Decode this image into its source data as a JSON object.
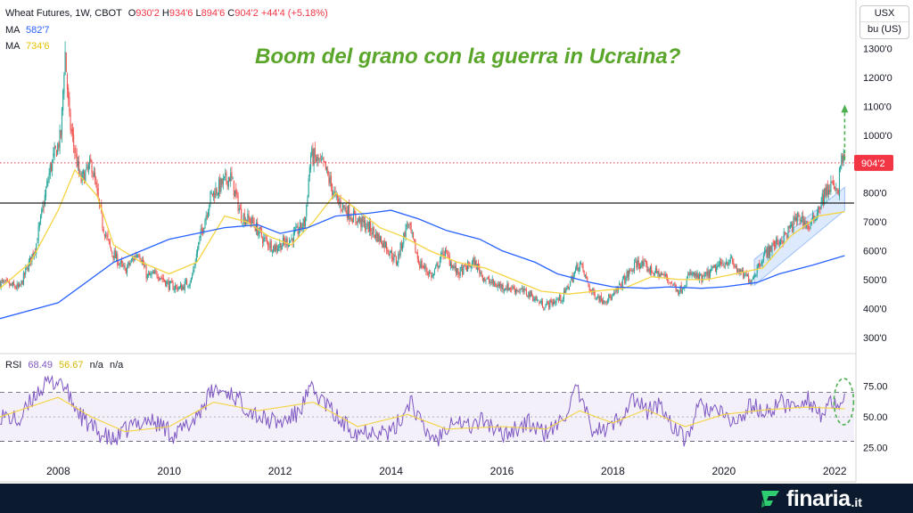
{
  "header": {
    "symbol": "Wheat Futures, 1W, CBOT",
    "open_label": "O",
    "open": "930'2",
    "high_label": "H",
    "high": "934'6",
    "low_label": "L",
    "low": "894'6",
    "close_label": "C",
    "close": "904'2",
    "change": "+44'4 (+5.18%)",
    "ma1_label": "MA",
    "ma1_value": "582'7",
    "ma2_label": "MA",
    "ma2_value": "734'6",
    "rsi_label": "RSI",
    "rsi_value": "68.49",
    "rsi_ma_value": "56.67",
    "na1": "n/a",
    "na2": "n/a"
  },
  "annotation_title": "Boom del grano con la guerra in Ucraina?",
  "units": {
    "currency": "USX",
    "unit": "bu (US)"
  },
  "price_label": "904'2",
  "brand": {
    "name": "finaria",
    "suffix": ".it"
  },
  "colors": {
    "up": "#26a69a",
    "down": "#ef5350",
    "ma_long": "#2962ff",
    "ma_short": "#f5d442",
    "rsi": "#7e57c2",
    "title": "#5aa62b",
    "marker": "#f23645",
    "footer": "#0b1a2e"
  },
  "chart_data": [
    {
      "type": "candlestick",
      "y_ticks": [
        "1300'0",
        "1200'0",
        "1100'0",
        "1000'0",
        "900'0",
        "800'0",
        "700'0",
        "600'0",
        "500'0",
        "400'0",
        "300'0"
      ],
      "y_tick_values": [
        1300,
        1200,
        1100,
        1000,
        900,
        800,
        700,
        600,
        500,
        400,
        300
      ],
      "ylim": [
        250,
        1345
      ],
      "x_ticks": [
        "2008",
        "2010",
        "2012",
        "2014",
        "2016",
        "2018",
        "2020",
        "2022"
      ],
      "x_tick_values": [
        2008,
        2010,
        2012,
        2014,
        2016,
        2018,
        2020,
        2022
      ],
      "xlim": [
        2006.95,
        2022.35
      ],
      "last_price": 904.25,
      "horizontal_level": 765,
      "price_path": [
        [
          2006.95,
          490
        ],
        [
          2007.3,
          470
        ],
        [
          2007.6,
          620
        ],
        [
          2007.85,
          880
        ],
        [
          2008.05,
          1000
        ],
        [
          2008.12,
          1300
        ],
        [
          2008.2,
          1050
        ],
        [
          2008.4,
          840
        ],
        [
          2008.6,
          900
        ],
        [
          2008.8,
          690
        ],
        [
          2008.95,
          600
        ],
        [
          2009.2,
          530
        ],
        [
          2009.45,
          600
        ],
        [
          2009.6,
          510
        ],
        [
          2009.8,
          520
        ],
        [
          2010.0,
          480
        ],
        [
          2010.2,
          470
        ],
        [
          2010.4,
          500
        ],
        [
          2010.55,
          640
        ],
        [
          2010.75,
          790
        ],
        [
          2011.1,
          860
        ],
        [
          2011.3,
          720
        ],
        [
          2011.5,
          700
        ],
        [
          2011.7,
          640
        ],
        [
          2011.9,
          610
        ],
        [
          2012.2,
          640
        ],
        [
          2012.45,
          700
        ],
        [
          2012.55,
          930
        ],
        [
          2012.8,
          890
        ],
        [
          2013.0,
          780
        ],
        [
          2013.3,
          720
        ],
        [
          2013.6,
          680
        ],
        [
          2013.9,
          620
        ],
        [
          2014.1,
          560
        ],
        [
          2014.3,
          700
        ],
        [
          2014.5,
          560
        ],
        [
          2014.75,
          510
        ],
        [
          2014.95,
          600
        ],
        [
          2015.2,
          520
        ],
        [
          2015.5,
          560
        ],
        [
          2015.7,
          500
        ],
        [
          2015.9,
          480
        ],
        [
          2016.2,
          470
        ],
        [
          2016.5,
          450
        ],
        [
          2016.75,
          410
        ],
        [
          2016.9,
          420
        ],
        [
          2017.1,
          440
        ],
        [
          2017.4,
          560
        ],
        [
          2017.6,
          460
        ],
        [
          2017.8,
          430
        ],
        [
          2018.0,
          440
        ],
        [
          2018.2,
          500
        ],
        [
          2018.45,
          560
        ],
        [
          2018.7,
          530
        ],
        [
          2018.95,
          510
        ],
        [
          2019.2,
          460
        ],
        [
          2019.4,
          520
        ],
        [
          2019.6,
          500
        ],
        [
          2019.85,
          540
        ],
        [
          2020.1,
          570
        ],
        [
          2020.3,
          520
        ],
        [
          2020.5,
          500
        ],
        [
          2020.7,
          580
        ],
        [
          2020.9,
          620
        ],
        [
          2021.1,
          650
        ],
        [
          2021.35,
          720
        ],
        [
          2021.55,
          680
        ],
        [
          2021.8,
          790
        ],
        [
          2021.95,
          830
        ],
        [
          2022.05,
          790
        ],
        [
          2022.12,
          930
        ],
        [
          2022.18,
          904
        ]
      ],
      "ma_slow": [
        [
          2006.95,
          365
        ],
        [
          2008.0,
          420
        ],
        [
          2009.0,
          560
        ],
        [
          2010.0,
          640
        ],
        [
          2011.0,
          680
        ],
        [
          2011.6,
          690
        ],
        [
          2012.0,
          660
        ],
        [
          2012.5,
          680
        ],
        [
          2013.0,
          720
        ],
        [
          2013.6,
          730
        ],
        [
          2014.0,
          740
        ],
        [
          2014.5,
          710
        ],
        [
          2015.0,
          670
        ],
        [
          2015.6,
          640
        ],
        [
          2016.0,
          600
        ],
        [
          2016.6,
          560
        ],
        [
          2017.0,
          520
        ],
        [
          2017.6,
          490
        ],
        [
          2018.0,
          475
        ],
        [
          2018.6,
          470
        ],
        [
          2019.0,
          475
        ],
        [
          2019.6,
          470
        ],
        [
          2020.0,
          475
        ],
        [
          2020.6,
          490
        ],
        [
          2021.0,
          520
        ],
        [
          2021.6,
          550
        ],
        [
          2022.18,
          583
        ]
      ],
      "ma_fast": [
        [
          2006.95,
          470
        ],
        [
          2007.5,
          560
        ],
        [
          2008.0,
          740
        ],
        [
          2008.3,
          880
        ],
        [
          2008.7,
          790
        ],
        [
          2009.0,
          620
        ],
        [
          2009.5,
          560
        ],
        [
          2010.0,
          520
        ],
        [
          2010.5,
          560
        ],
        [
          2011.0,
          720
        ],
        [
          2011.4,
          700
        ],
        [
          2011.8,
          650
        ],
        [
          2012.2,
          620
        ],
        [
          2012.6,
          700
        ],
        [
          2013.0,
          800
        ],
        [
          2013.4,
          740
        ],
        [
          2013.8,
          680
        ],
        [
          2014.2,
          650
        ],
        [
          2014.7,
          600
        ],
        [
          2015.2,
          560
        ],
        [
          2015.7,
          540
        ],
        [
          2016.2,
          500
        ],
        [
          2016.7,
          460
        ],
        [
          2017.2,
          450
        ],
        [
          2017.7,
          460
        ],
        [
          2018.2,
          470
        ],
        [
          2018.7,
          510
        ],
        [
          2019.2,
          500
        ],
        [
          2019.7,
          500
        ],
        [
          2020.2,
          520
        ],
        [
          2020.7,
          540
        ],
        [
          2021.2,
          650
        ],
        [
          2021.7,
          720
        ],
        [
          2022.18,
          735
        ]
      ],
      "channel": {
        "x": [
          2020.55,
          2022.18
        ],
        "lower": [
          480,
          740
        ],
        "upper": [
          570,
          820
        ]
      },
      "projection": {
        "x": 2022.18,
        "from": 915,
        "to": 1100
      }
    },
    {
      "type": "line",
      "name": "RSI",
      "y_ticks": [
        "75.00",
        "50.00",
        "25.00"
      ],
      "y_tick_values": [
        75,
        50,
        25
      ],
      "ylim": [
        18,
        85
      ],
      "band": [
        30,
        70
      ],
      "midline": 50,
      "rsi_path": [
        [
          2006.95,
          52
        ],
        [
          2007.3,
          46
        ],
        [
          2007.6,
          70
        ],
        [
          2007.85,
          78
        ],
        [
          2008.05,
          80
        ],
        [
          2008.25,
          62
        ],
        [
          2008.5,
          45
        ],
        [
          2008.8,
          35
        ],
        [
          2009.0,
          30
        ],
        [
          2009.3,
          42
        ],
        [
          2009.6,
          48
        ],
        [
          2009.9,
          42
        ],
        [
          2010.1,
          35
        ],
        [
          2010.4,
          45
        ],
        [
          2010.65,
          62
        ],
        [
          2010.8,
          72
        ],
        [
          2011.1,
          70
        ],
        [
          2011.4,
          58
        ],
        [
          2011.7,
          48
        ],
        [
          2012.0,
          45
        ],
        [
          2012.3,
          52
        ],
        [
          2012.55,
          72
        ],
        [
          2012.8,
          62
        ],
        [
          2013.1,
          45
        ],
        [
          2013.4,
          38
        ],
        [
          2013.7,
          40
        ],
        [
          2014.0,
          36
        ],
        [
          2014.2,
          50
        ],
        [
          2014.35,
          65
        ],
        [
          2014.6,
          38
        ],
        [
          2014.85,
          32
        ],
        [
          2015.1,
          50
        ],
        [
          2015.4,
          42
        ],
        [
          2015.7,
          48
        ],
        [
          2015.95,
          35
        ],
        [
          2016.2,
          40
        ],
        [
          2016.5,
          45
        ],
        [
          2016.75,
          36
        ],
        [
          2017.0,
          42
        ],
        [
          2017.2,
          58
        ],
        [
          2017.35,
          72
        ],
        [
          2017.6,
          42
        ],
        [
          2017.85,
          38
        ],
        [
          2018.1,
          48
        ],
        [
          2018.35,
          65
        ],
        [
          2018.6,
          55
        ],
        [
          2018.85,
          60
        ],
        [
          2019.1,
          42
        ],
        [
          2019.3,
          30
        ],
        [
          2019.55,
          58
        ],
        [
          2019.8,
          56
        ],
        [
          2020.0,
          50
        ],
        [
          2020.25,
          45
        ],
        [
          2020.5,
          60
        ],
        [
          2020.75,
          52
        ],
        [
          2021.0,
          62
        ],
        [
          2021.25,
          58
        ],
        [
          2021.5,
          66
        ],
        [
          2021.75,
          52
        ],
        [
          2021.95,
          60
        ],
        [
          2022.1,
          54
        ],
        [
          2022.18,
          68.5
        ]
      ],
      "rsi_ma_path": [
        [
          2006.95,
          50
        ],
        [
          2008.0,
          66
        ],
        [
          2008.6,
          50
        ],
        [
          2009.2,
          38
        ],
        [
          2010.0,
          42
        ],
        [
          2010.8,
          62
        ],
        [
          2011.6,
          55
        ],
        [
          2012.6,
          62
        ],
        [
          2013.4,
          42
        ],
        [
          2014.3,
          52
        ],
        [
          2015.0,
          40
        ],
        [
          2016.0,
          42
        ],
        [
          2016.8,
          40
        ],
        [
          2017.4,
          55
        ],
        [
          2018.0,
          45
        ],
        [
          2018.6,
          56
        ],
        [
          2019.3,
          42
        ],
        [
          2020.0,
          52
        ],
        [
          2020.8,
          56
        ],
        [
          2021.5,
          58
        ],
        [
          2022.18,
          56.7
        ]
      ]
    }
  ]
}
